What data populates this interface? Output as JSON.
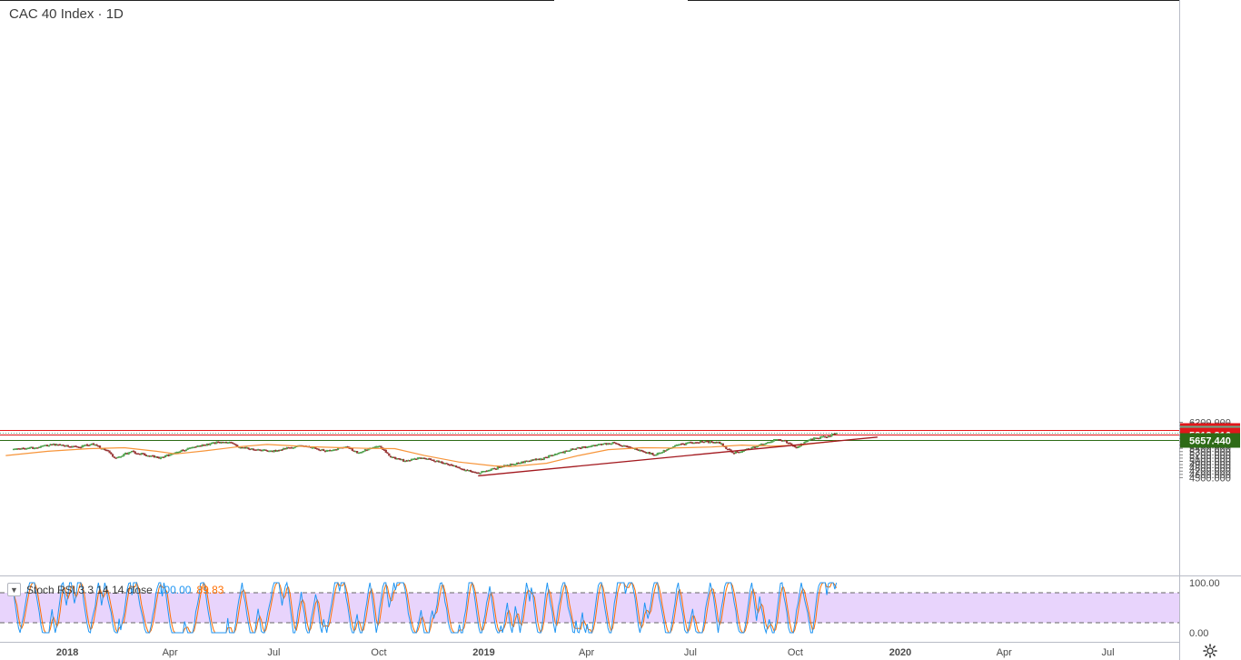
{
  "header": {
    "title": "CAC 40 Index · 1D"
  },
  "rsi_legend": {
    "label": "Stoch RSI 3 3 14 14 close",
    "k_value": "100.00",
    "d_value": "89.83"
  },
  "colors": {
    "up": "#26a69a",
    "up_body": "#5cb85c",
    "down": "#a63a3a",
    "ma": "#f7953a",
    "trend": "#a3191f",
    "resistance": "#e0171b",
    "support": "#2e6b17",
    "last_price": "#6aa88a",
    "stoch_k": "#2196f3",
    "stoch_d": "#ff6d00",
    "stoch_band": "#e0c6fb"
  },
  "icons": {
    "settings": "gear-icon",
    "collapse": "chevron-down-icon"
  },
  "chart_data": {
    "type": "candlestick",
    "title": "CAC 40 Index · 1D",
    "price_axis": {
      "ticks": [
        "4500.000",
        "4600.000",
        "4700.000",
        "4800.000",
        "4900.000",
        "5000.000",
        "5100.000",
        "5200.000",
        "5300.000",
        "5400.000",
        "5500.000",
        "5600.000",
        "5700.000",
        "5800.000",
        "5900.000",
        "6000.000",
        "6100.000",
        "6200.000"
      ],
      "range": [
        4440,
        6205
      ]
    },
    "time_axis": {
      "labels": [
        "2018",
        "Apr",
        "Jul",
        "Oct",
        "2019",
        "Apr",
        "Jul",
        "Oct",
        "2020",
        "Apr",
        "Jul"
      ],
      "bold": [
        "2018",
        "2019",
        "2020"
      ]
    },
    "levels": [
      {
        "name": "resistance-high",
        "value": 5955.335,
        "label": "5955.335",
        "kind": "resistance"
      },
      {
        "name": "last-price",
        "value": 5866.74,
        "label": "5866.740",
        "kind": "last"
      },
      {
        "name": "resistance-low",
        "value": 5813.316,
        "label": "5813.316",
        "kind": "resistance"
      },
      {
        "name": "support",
        "value": 5657.44,
        "label": "5657.440",
        "kind": "support"
      }
    ],
    "trendline": [
      {
        "date": "2018-12-27",
        "value": 4555
      },
      {
        "date": "2019-12-12",
        "value": 5745
      }
    ],
    "anchors": [
      {
        "date": "2017-11-15",
        "value": 5370
      },
      {
        "date": "2017-12-05",
        "value": 5430
      },
      {
        "date": "2017-12-20",
        "value": 5520
      },
      {
        "date": "2018-01-10",
        "value": 5430
      },
      {
        "date": "2018-01-23",
        "value": 5530
      },
      {
        "date": "2018-02-06",
        "value": 5290
      },
      {
        "date": "2018-02-12",
        "value": 5100
      },
      {
        "date": "2018-02-26",
        "value": 5300
      },
      {
        "date": "2018-03-23",
        "value": 5100
      },
      {
        "date": "2018-04-18",
        "value": 5400
      },
      {
        "date": "2018-05-15",
        "value": 5600
      },
      {
        "date": "2018-05-25",
        "value": 5550
      },
      {
        "date": "2018-06-01",
        "value": 5430
      },
      {
        "date": "2018-06-28",
        "value": 5310
      },
      {
        "date": "2018-07-26",
        "value": 5480
      },
      {
        "date": "2018-08-15",
        "value": 5330
      },
      {
        "date": "2018-09-03",
        "value": 5440
      },
      {
        "date": "2018-09-12",
        "value": 5260
      },
      {
        "date": "2018-10-01",
        "value": 5490
      },
      {
        "date": "2018-10-11",
        "value": 5150
      },
      {
        "date": "2018-10-24",
        "value": 5010
      },
      {
        "date": "2018-11-09",
        "value": 5120
      },
      {
        "date": "2018-12-07",
        "value": 4840
      },
      {
        "date": "2018-12-27",
        "value": 4630
      },
      {
        "date": "2019-01-18",
        "value": 4860
      },
      {
        "date": "2019-02-20",
        "value": 5080
      },
      {
        "date": "2019-03-20",
        "value": 5380
      },
      {
        "date": "2019-04-23",
        "value": 5570
      },
      {
        "date": "2019-05-02",
        "value": 5500
      },
      {
        "date": "2019-05-31",
        "value": 5200
      },
      {
        "date": "2019-06-20",
        "value": 5520
      },
      {
        "date": "2019-07-05",
        "value": 5600
      },
      {
        "date": "2019-07-26",
        "value": 5590
      },
      {
        "date": "2019-08-07",
        "value": 5250
      },
      {
        "date": "2019-08-22",
        "value": 5380
      },
      {
        "date": "2019-09-12",
        "value": 5650
      },
      {
        "date": "2019-09-20",
        "value": 5660
      },
      {
        "date": "2019-10-02",
        "value": 5420
      },
      {
        "date": "2019-10-14",
        "value": 5680
      },
      {
        "date": "2019-10-28",
        "value": 5760
      },
      {
        "date": "2019-11-07",
        "value": 5866.74
      }
    ],
    "ma": [
      {
        "date": "2017-11-08",
        "value": 5180
      },
      {
        "date": "2017-12-15",
        "value": 5310
      },
      {
        "date": "2018-01-20",
        "value": 5390
      },
      {
        "date": "2018-02-20",
        "value": 5420
      },
      {
        "date": "2018-03-20",
        "value": 5310
      },
      {
        "date": "2018-04-06",
        "value": 5230
      },
      {
        "date": "2018-05-01",
        "value": 5320
      },
      {
        "date": "2018-05-29",
        "value": 5440
      },
      {
        "date": "2018-06-25",
        "value": 5520
      },
      {
        "date": "2018-08-01",
        "value": 5450
      },
      {
        "date": "2018-09-20",
        "value": 5400
      },
      {
        "date": "2018-10-15",
        "value": 5390
      },
      {
        "date": "2018-11-10",
        "value": 5180
      },
      {
        "date": "2018-12-10",
        "value": 4980
      },
      {
        "date": "2019-01-10",
        "value": 4860
      },
      {
        "date": "2019-01-25",
        "value": 4840
      },
      {
        "date": "2019-02-25",
        "value": 4940
      },
      {
        "date": "2019-03-25",
        "value": 5180
      },
      {
        "date": "2019-04-20",
        "value": 5360
      },
      {
        "date": "2019-05-20",
        "value": 5420
      },
      {
        "date": "2019-06-15",
        "value": 5410
      },
      {
        "date": "2019-07-20",
        "value": 5440
      },
      {
        "date": "2019-08-15",
        "value": 5500
      },
      {
        "date": "2019-09-10",
        "value": 5470
      },
      {
        "date": "2019-10-05",
        "value": 5500
      },
      {
        "date": "2019-11-07",
        "value": 5630
      }
    ],
    "stoch_rsi": {
      "ticks": [
        "100.00",
        "0.00"
      ],
      "bands": [
        80,
        20
      ],
      "k_last": 100.0,
      "d_last": 89.83
    }
  }
}
